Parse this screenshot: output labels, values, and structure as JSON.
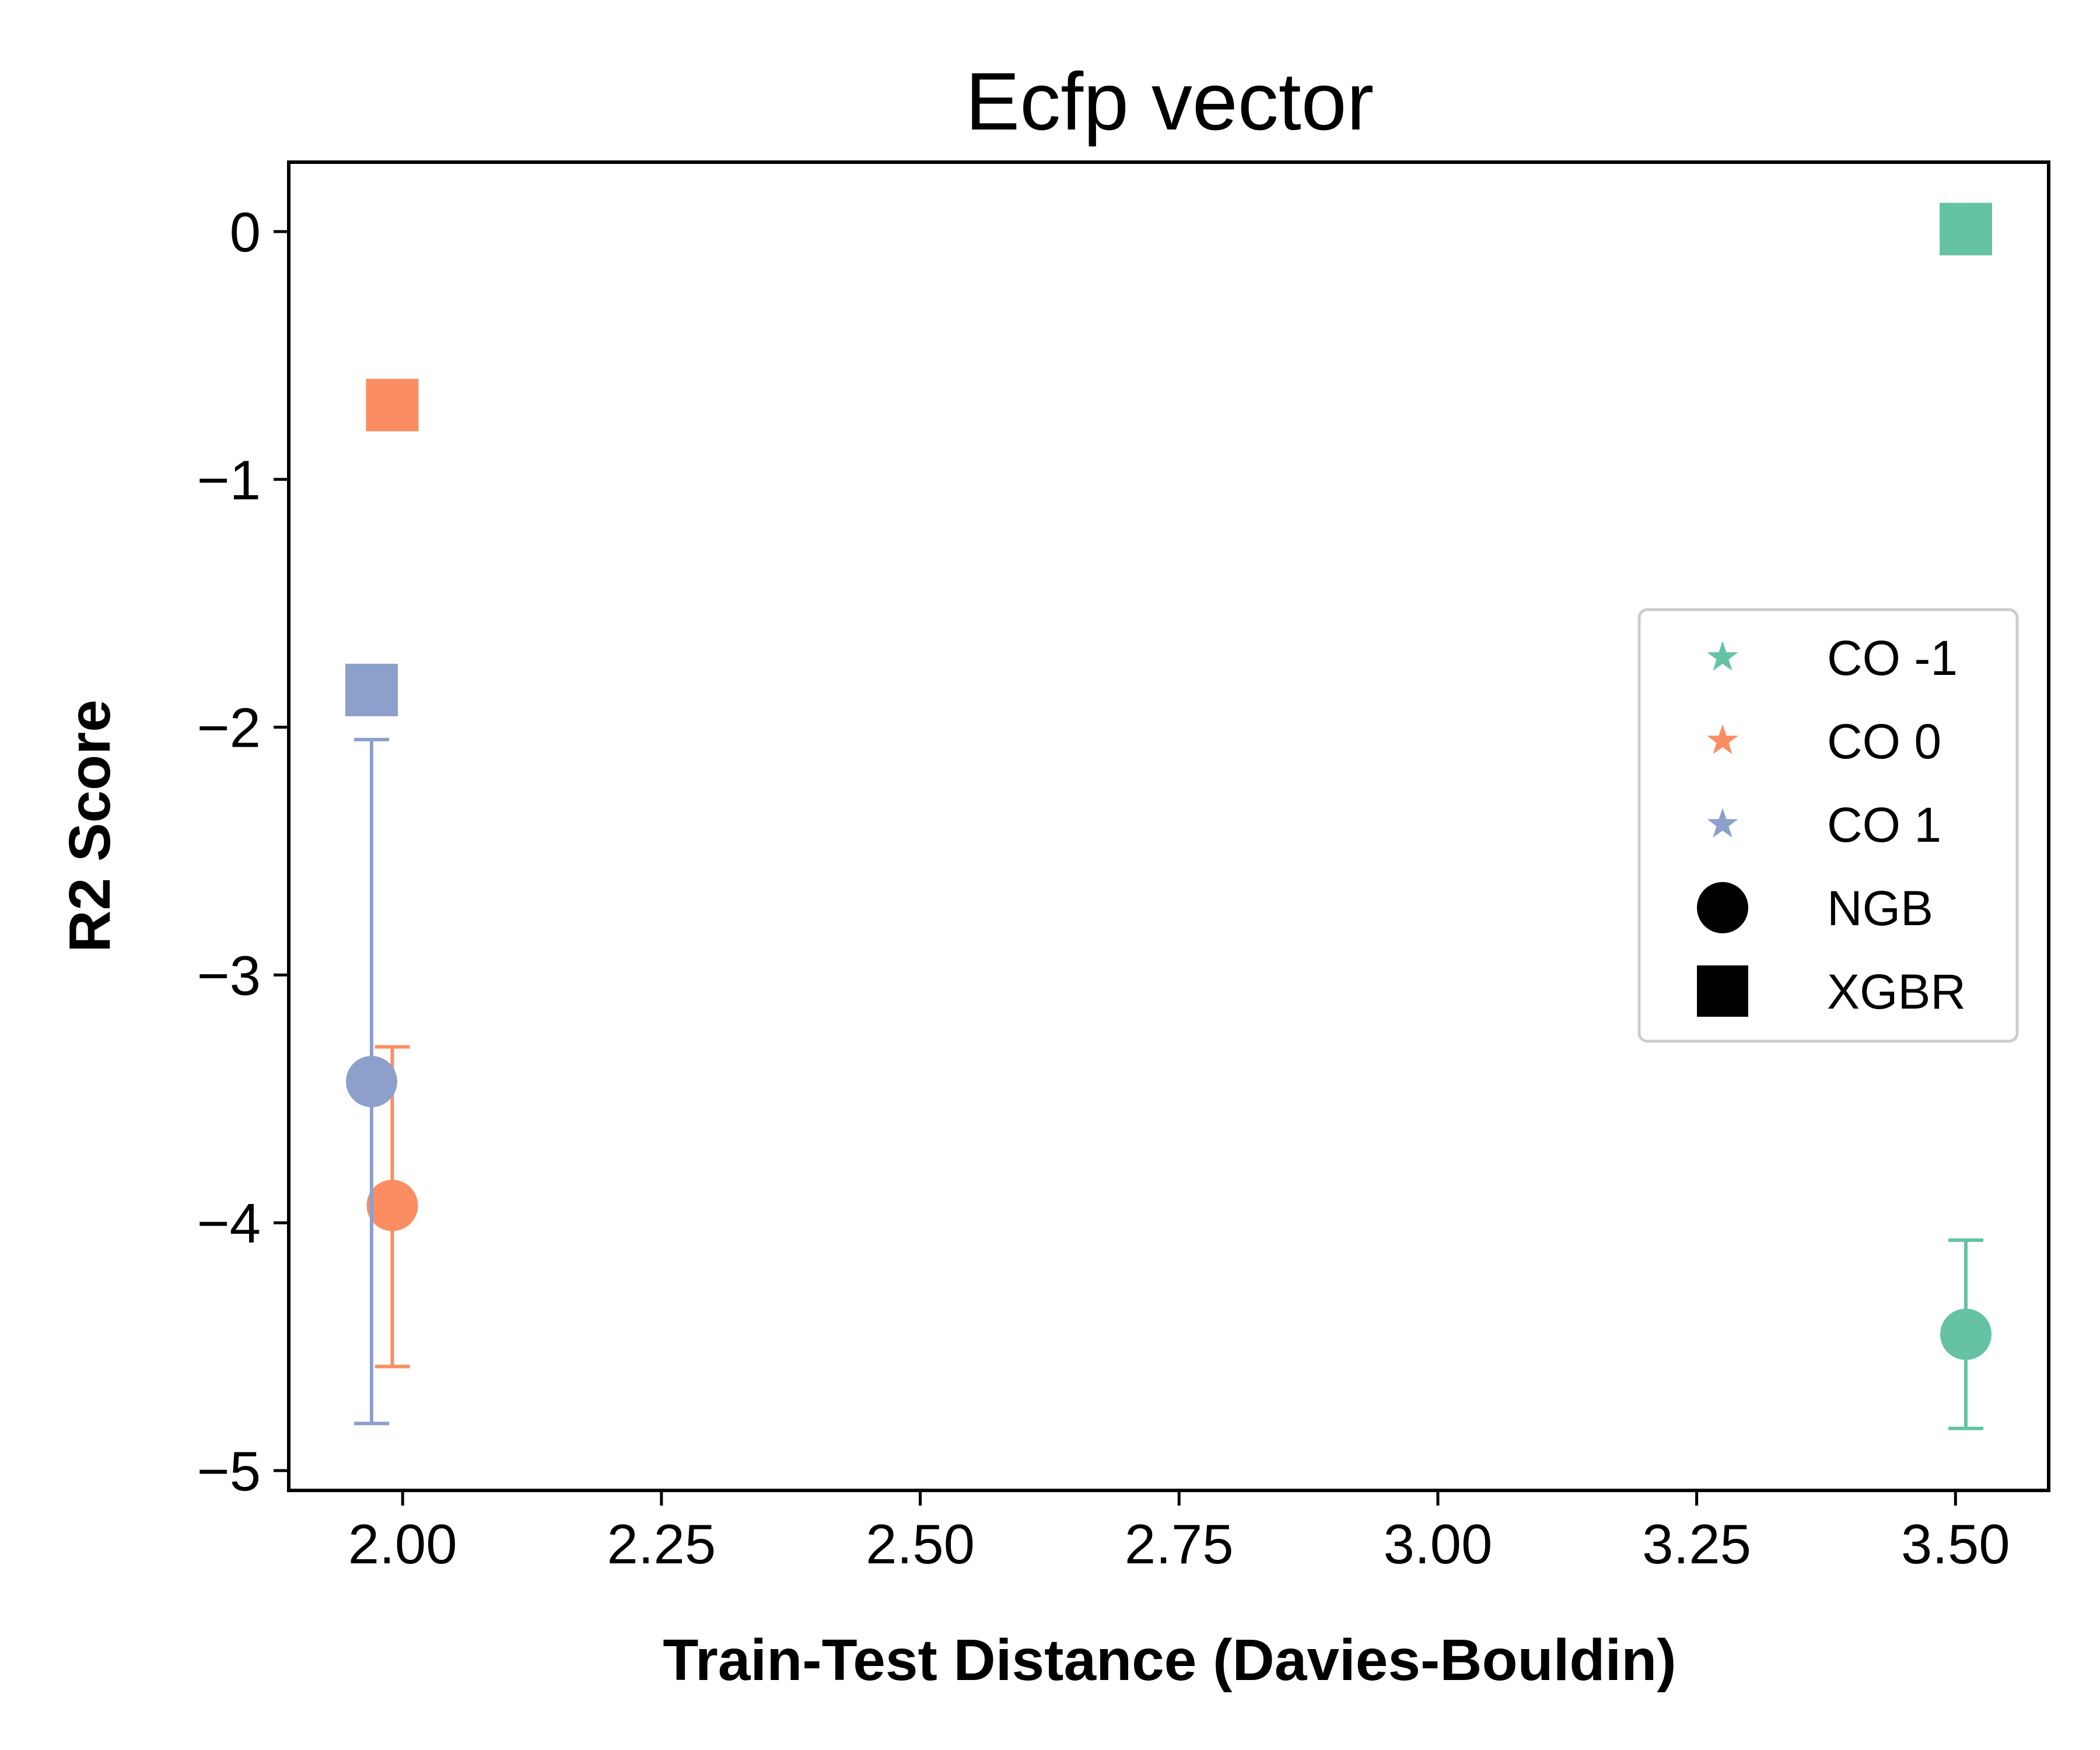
{
  "chart_data": {
    "type": "scatter",
    "title": "Ecfp vector",
    "xlabel": "Train-Test Distance (Davies-Bouldin)",
    "ylabel": "R2 Score",
    "xlim": [
      1.89,
      3.59
    ],
    "ylim": [
      -5.08,
      0.28
    ],
    "xticks": [
      2.0,
      2.25,
      2.5,
      2.75,
      3.0,
      3.25,
      3.5
    ],
    "xtick_labels": [
      "2.00",
      "2.25",
      "2.50",
      "2.75",
      "3.00",
      "3.25",
      "3.50"
    ],
    "yticks": [
      0,
      -1,
      -2,
      -3,
      -4,
      -5
    ],
    "ytick_labels": [
      "0",
      "−1",
      "−2",
      "−3",
      "−4",
      "−5"
    ],
    "grid": false,
    "legend_position": "center-right",
    "colors": {
      "CO -1": "#66c2a5",
      "CO 0": "#fc8d62",
      "CO 1": "#8da0cb"
    },
    "legend": [
      {
        "label": "CO -1",
        "marker": "star",
        "color": "#66c2a5"
      },
      {
        "label": "CO 0",
        "marker": "star",
        "color": "#fc8d62"
      },
      {
        "label": "CO 1",
        "marker": "star",
        "color": "#8da0cb"
      },
      {
        "label": "NGB",
        "marker": "circle",
        "color": "#000000"
      },
      {
        "label": "XGBR",
        "marker": "square",
        "color": "#000000"
      }
    ],
    "points": [
      {
        "group": "CO -1",
        "model": "NGB",
        "x": 3.51,
        "y": -4.45,
        "err_low": -4.83,
        "err_high": -4.07
      },
      {
        "group": "CO -1",
        "model": "XGBR",
        "x": 3.51,
        "y": 0.01
      },
      {
        "group": "CO 0",
        "model": "NGB",
        "x": 1.99,
        "y": -3.93,
        "err_low": -4.58,
        "err_high": -3.29
      },
      {
        "group": "CO 0",
        "model": "XGBR",
        "x": 1.99,
        "y": -0.7
      },
      {
        "group": "CO 1",
        "model": "NGB",
        "x": 1.97,
        "y": -3.43,
        "err_low": -4.81,
        "err_high": -2.05
      },
      {
        "group": "CO 1",
        "model": "XGBR",
        "x": 1.97,
        "y": -1.85
      }
    ]
  }
}
